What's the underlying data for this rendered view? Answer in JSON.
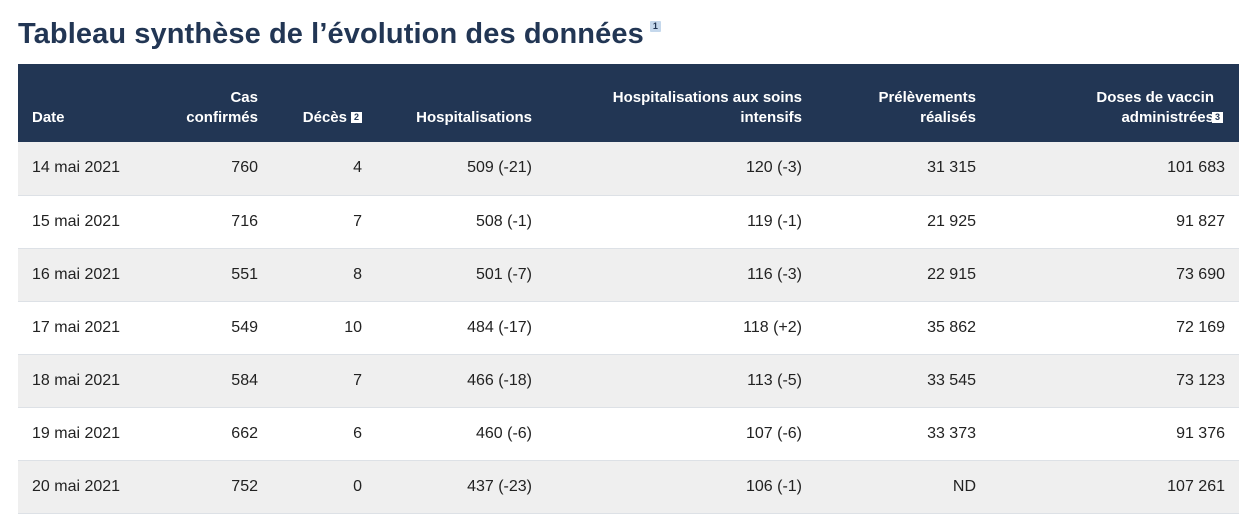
{
  "title": "Tableau synthèse de l’évolution des données",
  "title_note": "1",
  "columns": [
    {
      "label": "Date",
      "note": ""
    },
    {
      "label": "Cas confirmés",
      "note": ""
    },
    {
      "label": "Décès",
      "note": "2"
    },
    {
      "label": "Hospitalisations",
      "note": ""
    },
    {
      "label": "Hospitalisations aux soins intensifs",
      "note": ""
    },
    {
      "label": "Prélèvements réalisés",
      "note": ""
    },
    {
      "label": "Doses de vaccin administrées",
      "note": "3"
    }
  ],
  "rows": [
    [
      "14 mai 2021",
      "760",
      "4",
      "509 (-21)",
      "120 (-3)",
      "31 315",
      "101 683"
    ],
    [
      "15 mai 2021",
      "716",
      "7",
      "508 (-1)",
      "119 (-1)",
      "21 925",
      "91 827"
    ],
    [
      "16 mai 2021",
      "551",
      "8",
      "501 (-7)",
      "116 (-3)",
      "22 915",
      "73 690"
    ],
    [
      "17 mai 2021",
      "549",
      "10",
      "484 (-17)",
      "118 (+2)",
      "35 862",
      "72 169"
    ],
    [
      "18 mai 2021",
      "584",
      "7",
      "466 (-18)",
      "113 (-5)",
      "33 545",
      "73 123"
    ],
    [
      "19 mai 2021",
      "662",
      "6",
      "460 (-6)",
      "107 (-6)",
      "33 373",
      "91 376"
    ],
    [
      "20 mai 2021",
      "752",
      "0",
      "437 (-23)",
      "106 (-1)",
      "ND",
      "107 261"
    ]
  ]
}
